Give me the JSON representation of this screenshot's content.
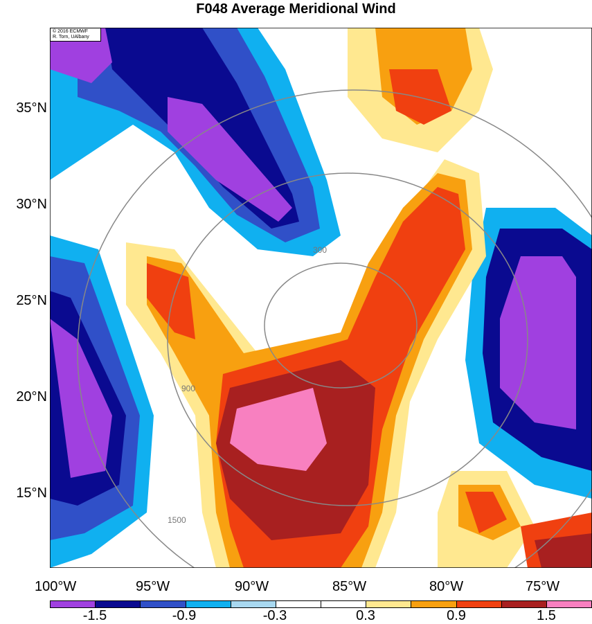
{
  "title": "F048 Average Meridional Wind",
  "credit": {
    "line1": "© 2016 ECMWF",
    "line2": "R. Torn, UAlbany"
  },
  "latitude_labels": [
    "35°N",
    "30°N",
    "25°N",
    "20°N",
    "15°N"
  ],
  "longitude_labels": [
    "100°W",
    "95°W",
    "90°W",
    "85°W",
    "80°W",
    "75°W"
  ],
  "contour_labels": [
    "300",
    "900",
    "1500"
  ],
  "colorbar": {
    "colors": [
      "#a040e0",
      "#0a0a90",
      "#3050c8",
      "#10b0f0",
      "#a8d8f0",
      "#ffffff",
      "#ffffff",
      "#ffe890",
      "#f8a010",
      "#f04010",
      "#a82020",
      "#f880c0"
    ],
    "tick_labels": [
      "-1.5",
      "-0.9",
      "-0.3",
      "0.3",
      "0.9",
      "1.5"
    ]
  }
}
